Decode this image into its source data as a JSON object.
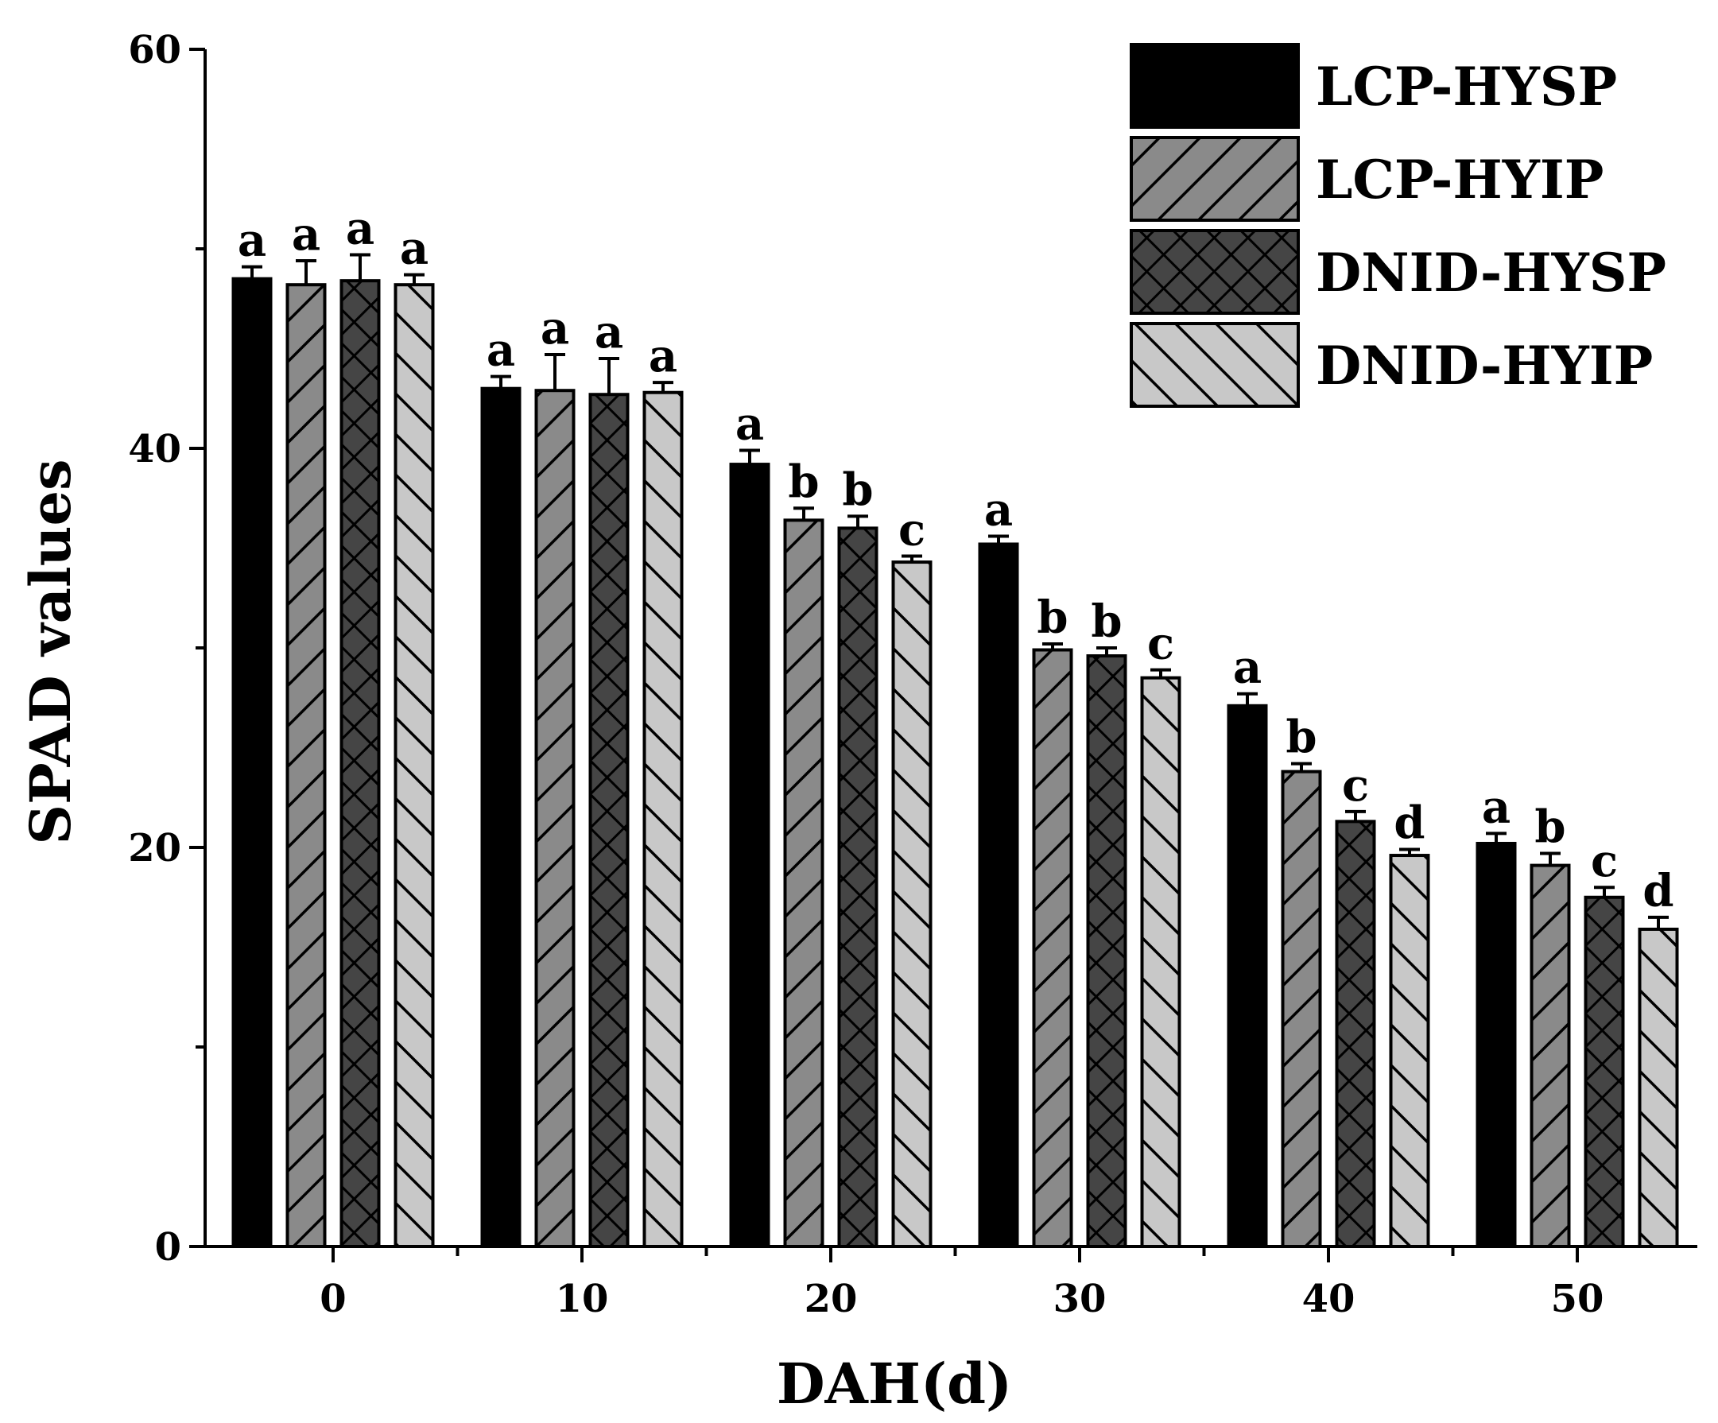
{
  "chart_data": {
    "type": "bar",
    "xlabel": "DAH(d)",
    "ylabel": "SPAD values",
    "ylim": [
      0,
      60
    ],
    "yticks": [
      0,
      20,
      40,
      60
    ],
    "categories": [
      "0",
      "10",
      "20",
      "30",
      "40",
      "50"
    ],
    "legend_position": "top-right",
    "grid": false,
    "series": [
      {
        "name": "LCP-HYSP",
        "fill": "#000000",
        "pattern": "solid",
        "values": [
          48.5,
          43.0,
          39.2,
          35.2,
          27.1,
          20.2
        ],
        "errors": [
          0.6,
          0.6,
          0.7,
          0.4,
          0.6,
          0.5
        ],
        "letters": [
          "a",
          "a",
          "a",
          "a",
          "a",
          "a"
        ]
      },
      {
        "name": "LCP-HYIP",
        "fill": "#8a8a8a",
        "pattern": "forward-hatch",
        "values": [
          48.2,
          42.9,
          36.4,
          29.9,
          23.8,
          19.1
        ],
        "errors": [
          1.2,
          1.8,
          0.6,
          0.3,
          0.4,
          0.6
        ],
        "letters": [
          "a",
          "a",
          "b",
          "b",
          "b",
          "b"
        ]
      },
      {
        "name": "DNID-HYSP",
        "fill": "#454545",
        "pattern": "cross-hatch",
        "values": [
          48.4,
          42.7,
          36.0,
          29.6,
          21.3,
          17.5
        ],
        "errors": [
          1.3,
          1.8,
          0.6,
          0.4,
          0.5,
          0.5
        ],
        "letters": [
          "a",
          "a",
          "b",
          "b",
          "c",
          "c"
        ]
      },
      {
        "name": "DNID-HYIP",
        "fill": "#c8c8c8",
        "pattern": "back-hatch",
        "values": [
          48.2,
          42.8,
          34.3,
          28.5,
          19.6,
          15.9
        ],
        "errors": [
          0.5,
          0.5,
          0.3,
          0.4,
          0.3,
          0.6
        ],
        "letters": [
          "a",
          "a",
          "c",
          "c",
          "d",
          "d"
        ]
      }
    ]
  }
}
